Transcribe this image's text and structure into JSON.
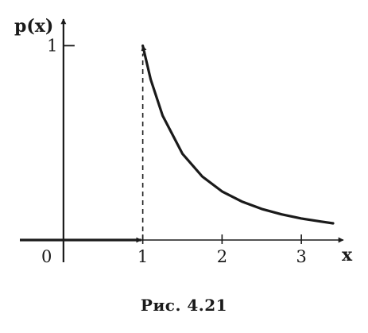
{
  "chart_data": {
    "type": "line",
    "ylabel": "p(x)",
    "xlabel": "x",
    "origin_label": "0",
    "xlim": [
      -0.55,
      3.55
    ],
    "ylim": [
      0,
      1.1
    ],
    "x_ticks": [
      "1",
      "2",
      "3"
    ],
    "x_tick_values": [
      1,
      2,
      3
    ],
    "y_ticks": [
      "1"
    ],
    "y_tick_values": [
      1
    ],
    "series": [
      {
        "x": [
          1,
          1.1,
          1.25,
          1.5,
          1.75,
          2,
          2.25,
          2.5,
          2.75,
          3,
          3.25,
          3.4
        ],
        "y": [
          1.0,
          0.826,
          0.64,
          0.444,
          0.327,
          0.25,
          0.198,
          0.16,
          0.132,
          0.111,
          0.095,
          0.086
        ]
      }
    ],
    "zero_segment": {
      "x": [
        -0.55,
        1
      ],
      "y": [
        0,
        0
      ]
    },
    "dashed_guide": {
      "x": 1,
      "y": [
        0,
        1
      ]
    },
    "grid": false,
    "colors": {
      "ink": "#1a1a1a",
      "background": "#ffffff"
    }
  },
  "caption": "Рис. 4.21"
}
